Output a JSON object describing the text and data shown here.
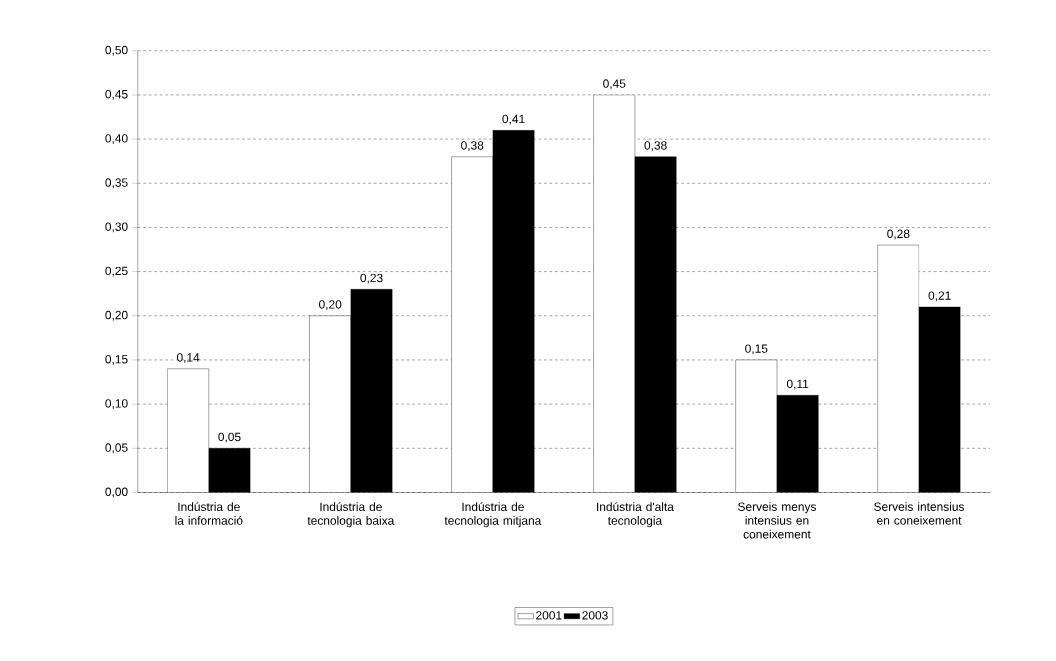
{
  "chart_data": {
    "type": "bar",
    "categories": [
      "Indústria de la informació",
      "Indústria de tecnologia baixa",
      "Indústria de tecnologia mitjana",
      "Indústria d'alta tecnologia",
      "Serveis menys intensius en coneixement",
      "Serveis intensius en coneixement"
    ],
    "series": [
      {
        "name": "2001",
        "color": "#ffffff",
        "values": [
          0.14,
          0.2,
          0.38,
          0.45,
          0.15,
          0.28
        ],
        "value_labels": [
          "0,14",
          "0,20",
          "0,38",
          "0,45",
          "0,15",
          "0,28"
        ]
      },
      {
        "name": "2003",
        "color": "#000000",
        "values": [
          0.05,
          0.23,
          0.41,
          0.38,
          0.11,
          0.21
        ],
        "value_labels": [
          "0,05",
          "0,23",
          "0,41",
          "0,38",
          "0,11",
          "0,21"
        ]
      }
    ],
    "ylim": [
      0,
      0.5
    ],
    "yticks": [
      {
        "value": 0,
        "label": "0,00"
      },
      {
        "value": 0.05,
        "label": "0,05"
      },
      {
        "value": 0.1,
        "label": "0,10"
      },
      {
        "value": 0.15,
        "label": "0,15"
      },
      {
        "value": 0.2,
        "label": "0,20"
      },
      {
        "value": 0.25,
        "label": "0,25"
      },
      {
        "value": 0.3,
        "label": "0,30"
      },
      {
        "value": 0.35,
        "label": "0,35"
      },
      {
        "value": 0.4,
        "label": "0,40"
      },
      {
        "value": 0.45,
        "label": "0,45"
      },
      {
        "value": 0.5,
        "label": "0,50"
      }
    ],
    "grid": "y",
    "legend": "bottom"
  }
}
